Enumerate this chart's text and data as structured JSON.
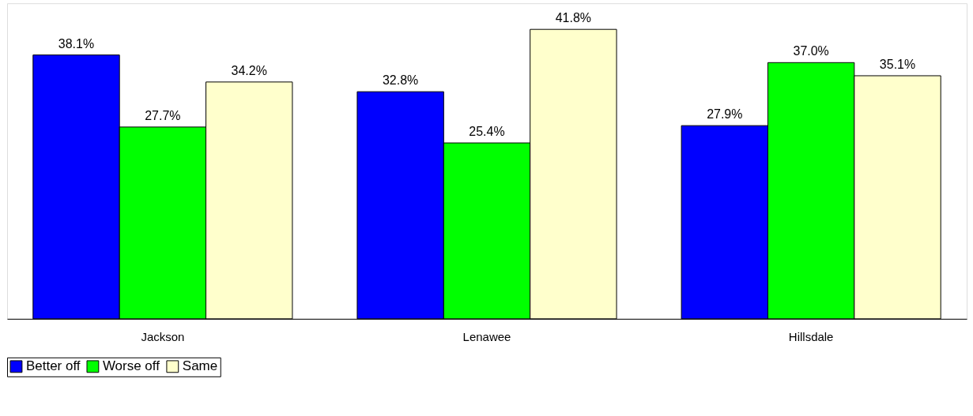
{
  "chart_data": {
    "type": "bar",
    "categories": [
      "Jackson",
      "Lenawee",
      "Hillsdale"
    ],
    "series": [
      {
        "name": "Better off",
        "color": "#0000ff",
        "values": [
          38.1,
          32.8,
          27.9
        ],
        "value_labels": [
          "38.1%",
          "32.8%",
          "27.9%"
        ]
      },
      {
        "name": "Worse off",
        "color": "#00ff00",
        "values": [
          27.7,
          25.4,
          37.0
        ],
        "value_labels": [
          "27.7%",
          "25.4%",
          "37.0%"
        ]
      },
      {
        "name": "Same",
        "color": "#ffffcc",
        "values": [
          34.2,
          41.8,
          35.1
        ],
        "value_labels": [
          "34.2%",
          "41.8%",
          "35.1%"
        ]
      }
    ],
    "legend": "bottom",
    "grid": false
  }
}
